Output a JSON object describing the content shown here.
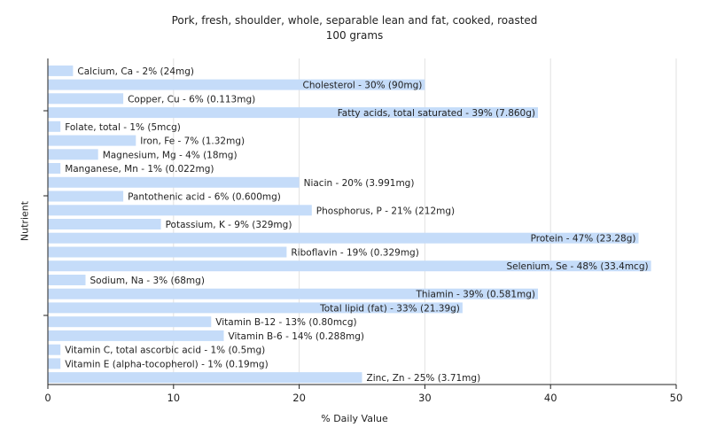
{
  "chart_data": {
    "type": "bar",
    "orientation": "horizontal",
    "title": "Pork, fresh, shoulder, whole, separable lean and fat, cooked, roasted",
    "subtitle": "100 grams",
    "xlabel": "% Daily Value",
    "ylabel": "Nutrient",
    "xlim": [
      0,
      50
    ],
    "xticks": [
      0,
      10,
      20,
      30,
      40,
      50
    ],
    "grid": true,
    "bar_color": "#c5dcf9",
    "categories": [
      "Calcium, Ca",
      "Cholesterol",
      "Copper, Cu",
      "Fatty acids, total saturated",
      "Folate, total",
      "Iron, Fe",
      "Magnesium, Mg",
      "Manganese, Mn",
      "Niacin",
      "Pantothenic acid",
      "Phosphorus, P",
      "Potassium, K",
      "Protein",
      "Riboflavin",
      "Selenium, Se",
      "Sodium, Na",
      "Thiamin",
      "Total lipid (fat)",
      "Vitamin B-12",
      "Vitamin B-6",
      "Vitamin C, total ascorbic acid",
      "Vitamin E (alpha-tocopherol)",
      "Zinc, Zn"
    ],
    "values": [
      2,
      30,
      6,
      39,
      1,
      7,
      4,
      1,
      20,
      6,
      21,
      9,
      47,
      19,
      48,
      3,
      39,
      33,
      13,
      14,
      1,
      1,
      25
    ],
    "labels": [
      "Calcium, Ca - 2% (24mg)",
      "Cholesterol - 30% (90mg)",
      "Copper, Cu - 6% (0.113mg)",
      "Fatty acids, total saturated - 39% (7.860g)",
      "Folate, total - 1% (5mcg)",
      "Iron, Fe - 7% (1.32mg)",
      "Magnesium, Mg - 4% (18mg)",
      "Manganese, Mn - 1% (0.022mg)",
      "Niacin - 20% (3.991mg)",
      "Pantothenic acid - 6% (0.600mg)",
      "Phosphorus, P - 21% (212mg)",
      "Potassium, K - 9% (329mg)",
      "Protein - 47% (23.28g)",
      "Riboflavin - 19% (0.329mg)",
      "Selenium, Se - 48% (33.4mcg)",
      "Sodium, Na - 3% (68mg)",
      "Thiamin - 39% (0.581mg)",
      "Total lipid (fat) - 33% (21.39g)",
      "Vitamin B-12 - 13% (0.80mcg)",
      "Vitamin B-6 - 14% (0.288mg)",
      "Vitamin C, total ascorbic acid - 1% (0.5mg)",
      "Vitamin E (alpha-tocopherol) - 1% (0.19mg)",
      "Zinc, Zn - 25% (3.71mg)"
    ]
  }
}
